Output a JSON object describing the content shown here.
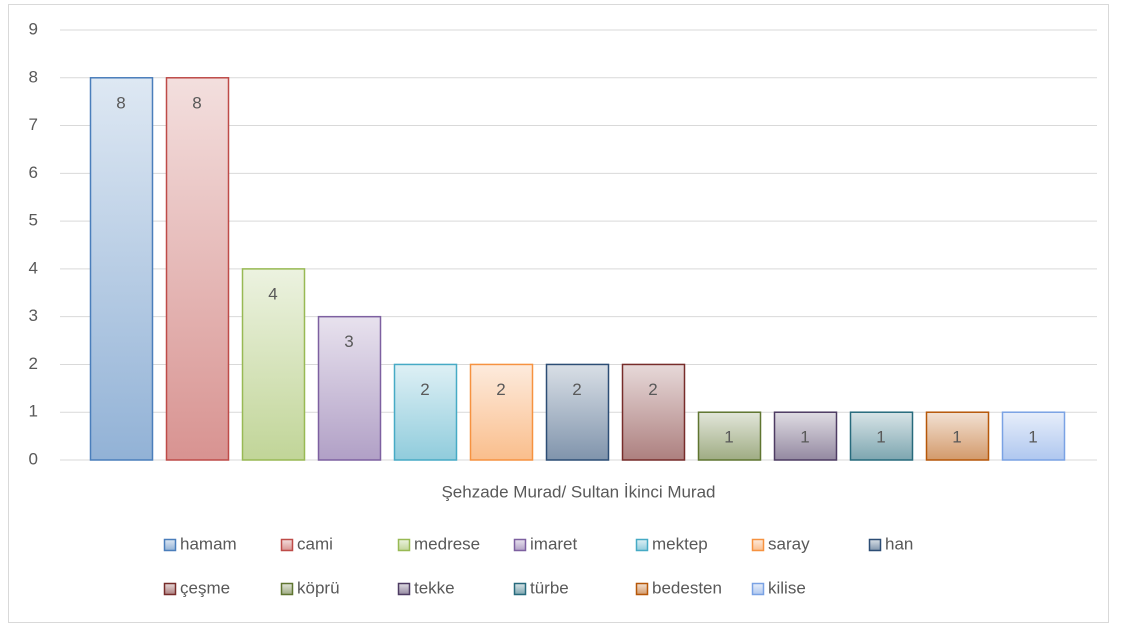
{
  "chart_data": {
    "type": "bar",
    "categories": [
      "Şehzade Murad/ Sultan İkinci Murad"
    ],
    "series": [
      {
        "name": "hamam",
        "color": "#4a7ebb",
        "values": [
          8
        ]
      },
      {
        "name": "cami",
        "color": "#be4b48",
        "values": [
          8
        ]
      },
      {
        "name": "medrese",
        "color": "#98b954",
        "values": [
          4
        ]
      },
      {
        "name": "imaret",
        "color": "#7d60a0",
        "values": [
          3
        ]
      },
      {
        "name": "mektep",
        "color": "#46aac5",
        "values": [
          2
        ]
      },
      {
        "name": "saray",
        "color": "#f69240",
        "values": [
          2
        ]
      },
      {
        "name": "han",
        "color": "#2c4d75",
        "values": [
          2
        ]
      },
      {
        "name": "çeşme",
        "color": "#772c2a",
        "values": [
          2
        ]
      },
      {
        "name": "köprü",
        "color": "#5f7530",
        "values": [
          1
        ]
      },
      {
        "name": "tekke",
        "color": "#4d3b62",
        "values": [
          1
        ]
      },
      {
        "name": "türbe",
        "color": "#276a7c",
        "values": [
          1
        ]
      },
      {
        "name": "bedesten",
        "color": "#b65708",
        "values": [
          1
        ]
      },
      {
        "name": "kilise",
        "color": "#7aa2e4",
        "values": [
          1
        ]
      }
    ],
    "ylim": [
      0,
      9
    ],
    "yticks": [
      0,
      1,
      2,
      3,
      4,
      5,
      6,
      7,
      8,
      9
    ],
    "grid": true,
    "legend": "bottom"
  }
}
